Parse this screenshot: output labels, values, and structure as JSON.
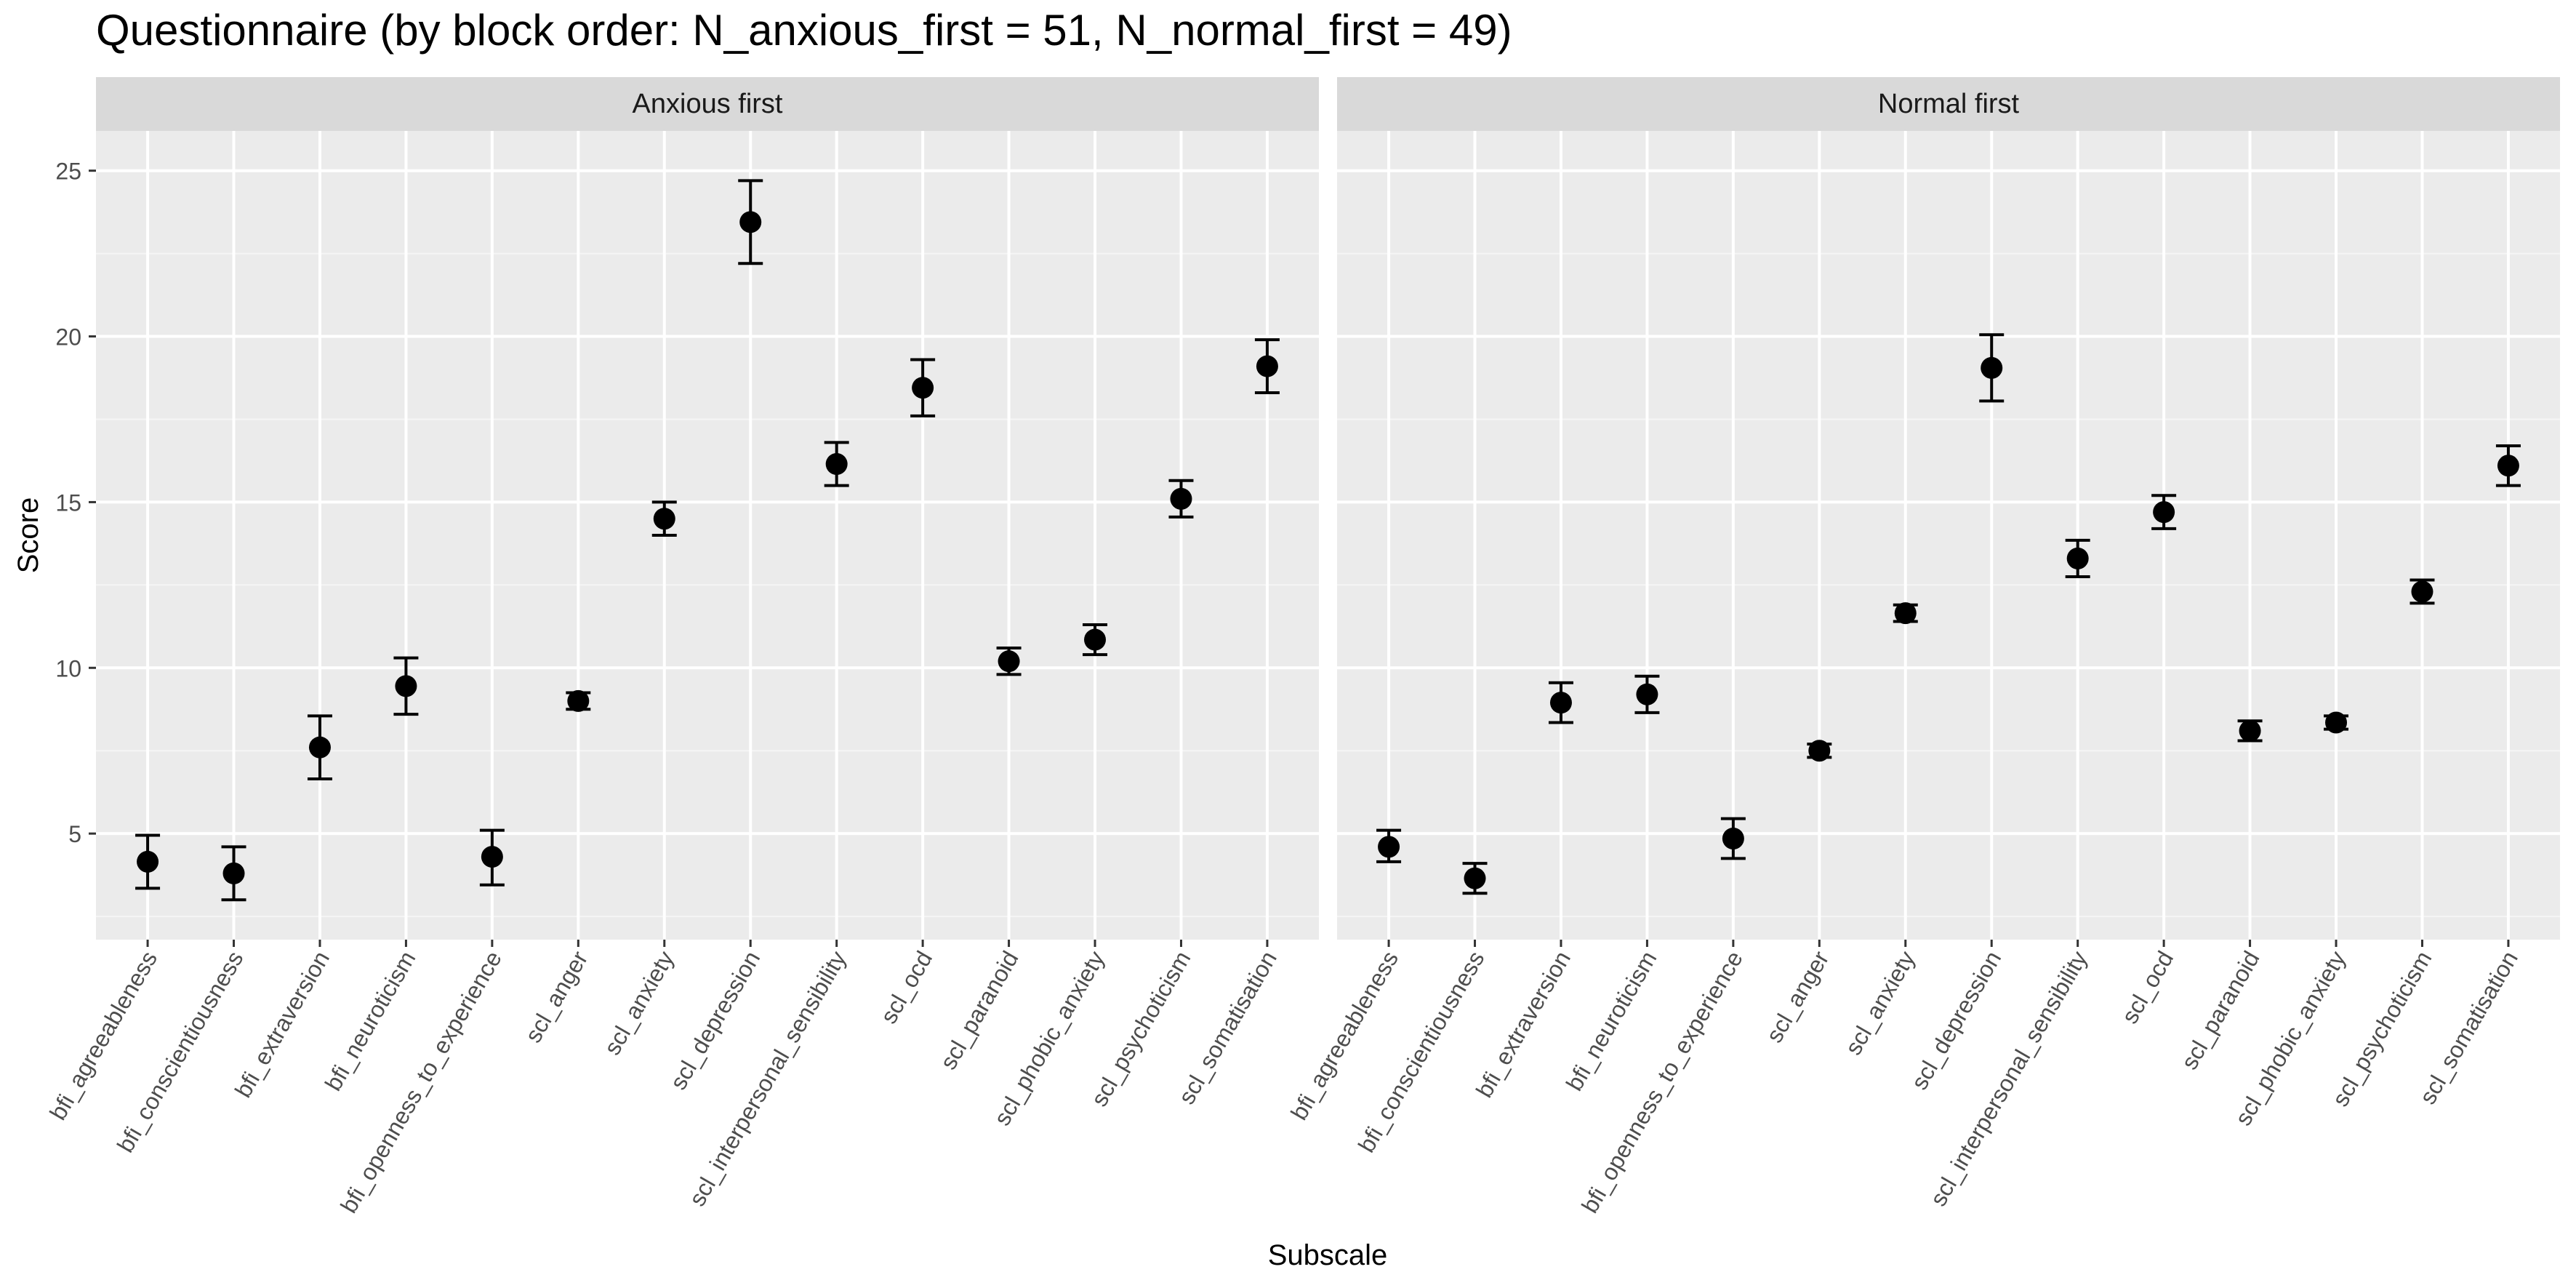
{
  "chart_data": {
    "type": "scatter",
    "title": "Questionnaire (by block order: N_anxious_first = 51, N_normal_first = 49)",
    "xlabel": "Subscale",
    "ylabel": "Score",
    "ylim": [
      1.8,
      26.2
    ],
    "yticks": [
      5,
      10,
      15,
      20,
      25
    ],
    "categories": [
      "bfi_agreeableness",
      "bfi_conscientiousness",
      "bfi_extraversion",
      "bfi_neuroticism",
      "bfi_openness_to_experience",
      "scl_anger",
      "scl_anxiety",
      "scl_depression",
      "scl_interpersonal_sensibility",
      "scl_ocd",
      "scl_paranoid",
      "scl_phobic_anxiety",
      "scl_psychoticism",
      "scl_somatisation"
    ],
    "grid": true,
    "error_bars": true,
    "panels": [
      {
        "name": "Anxious first",
        "mean": [
          4.15,
          3.8,
          7.6,
          9.45,
          4.3,
          9.0,
          14.5,
          23.45,
          16.15,
          18.45,
          10.2,
          10.85,
          15.1,
          19.1
        ],
        "lower": [
          3.35,
          3.0,
          6.65,
          8.6,
          3.45,
          8.75,
          14.0,
          22.2,
          15.5,
          17.6,
          9.8,
          10.4,
          14.55,
          18.3
        ],
        "upper": [
          4.95,
          4.6,
          8.55,
          10.3,
          5.1,
          9.25,
          15.0,
          24.7,
          16.8,
          19.3,
          10.6,
          11.3,
          15.65,
          19.9
        ]
      },
      {
        "name": "Normal first",
        "mean": [
          4.6,
          3.65,
          8.95,
          9.2,
          4.85,
          7.5,
          11.65,
          19.05,
          13.3,
          14.7,
          8.1,
          8.35,
          12.3,
          16.1
        ],
        "lower": [
          4.15,
          3.2,
          8.35,
          8.65,
          4.25,
          7.3,
          11.4,
          18.05,
          12.75,
          14.2,
          7.8,
          8.15,
          11.95,
          15.5
        ],
        "upper": [
          5.1,
          4.1,
          9.55,
          9.75,
          5.45,
          7.7,
          11.9,
          20.05,
          13.85,
          15.2,
          8.4,
          8.55,
          12.65,
          16.7
        ]
      }
    ]
  },
  "colors": {
    "panel_background": "#ebebeb",
    "strip_background": "#d9d9d9",
    "grid_major": "#ffffff",
    "grid_minor": "#f5f5f5",
    "point": "#000000",
    "text": "#000000",
    "axis_text": "#4d4d4d"
  }
}
